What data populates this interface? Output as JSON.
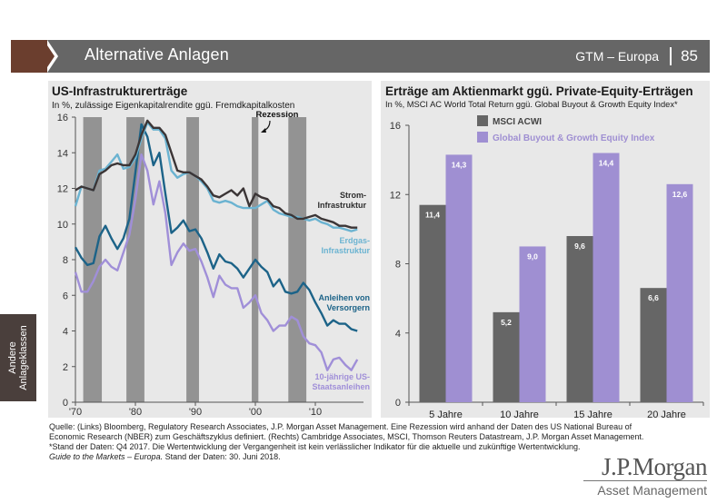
{
  "header": {
    "title": "Alternative Anlagen",
    "series_label": "GTM – Europa",
    "page_number": "85"
  },
  "side_tab": {
    "line1": "Andere",
    "line2": "Anlageklassen"
  },
  "colors": {
    "header_bg": "#666666",
    "header_accent": "#6b3e2e",
    "panel_bg": "#e8e8e8",
    "recession": "#939393",
    "strom": "#3b3536",
    "erdgas": "#6bb3d1",
    "anleihen": "#1c6388",
    "staats": "#a08fd8",
    "msci": "#666666",
    "buyout": "#9f8fd2"
  },
  "chart_data": [
    {
      "type": "line",
      "title": "US-Infrastrukturerträge",
      "subtitle": "In %, zulässige Eigenkapitalrendite ggü. Fremdkapitalkosten",
      "xlabel": "",
      "ylabel": "",
      "xlim": [
        1970,
        2018
      ],
      "ylim": [
        0,
        16
      ],
      "yticks": [
        0,
        2,
        4,
        6,
        8,
        10,
        12,
        14,
        16
      ],
      "xticks": [
        {
          "value": 1970,
          "label": "'70"
        },
        {
          "value": 1980,
          "label": "'80"
        },
        {
          "value": 1990,
          "label": "'90"
        },
        {
          "value": 2000,
          "label": "'00"
        },
        {
          "value": 2010,
          "label": "'10"
        }
      ],
      "annotation": "Rezession",
      "recessions": [
        [
          1971.3,
          1974.4
        ],
        [
          1978.5,
          1981.5
        ],
        [
          1988.5,
          1990.6
        ],
        [
          1999.4,
          2000.5
        ],
        [
          2005.5,
          2008.5
        ]
      ],
      "series": [
        {
          "name": "Strom-Infrastruktur",
          "label_lines": [
            "Strom-",
            "Infrastruktur"
          ],
          "color_key": "strom",
          "x": [
            1970,
            1971,
            1972,
            1973,
            1974,
            1975,
            1976,
            1977,
            1978,
            1979,
            1980,
            1981,
            1982,
            1983,
            1984,
            1985,
            1986,
            1987,
            1988,
            1989,
            1990,
            1991,
            1992,
            1993,
            1994,
            1995,
            1996,
            1997,
            1998,
            1999,
            2000,
            2001,
            2002,
            2003,
            2004,
            2005,
            2006,
            2007,
            2008,
            2009,
            2010,
            2011,
            2012,
            2013,
            2014,
            2015,
            2016,
            2017
          ],
          "values": [
            11.9,
            12.1,
            12.0,
            11.9,
            12.8,
            13.0,
            13.3,
            13.4,
            13.3,
            13.3,
            13.9,
            15.0,
            15.8,
            15.4,
            15.4,
            15.0,
            14.0,
            13.0,
            12.9,
            12.9,
            12.7,
            12.5,
            12.1,
            11.6,
            11.5,
            11.7,
            11.9,
            11.6,
            12.0,
            11.0,
            11.7,
            11.5,
            11.4,
            11.0,
            10.9,
            10.6,
            10.5,
            10.3,
            10.3,
            10.4,
            10.5,
            10.3,
            10.2,
            10.1,
            9.9,
            9.9,
            9.8,
            9.8
          ]
        },
        {
          "name": "Erdgas-Infrastruktur",
          "label_lines": [
            "Erdgas-",
            "Infrastruktur"
          ],
          "color_key": "erdgas",
          "x": [
            1970,
            1971,
            1972,
            1973,
            1974,
            1975,
            1976,
            1977,
            1978,
            1979,
            1980,
            1981,
            1982,
            1983,
            1984,
            1985,
            1986,
            1987,
            1988,
            1989,
            1990,
            1991,
            1992,
            1993,
            1994,
            1995,
            1996,
            1997,
            1998,
            1999,
            2000,
            2001,
            2002,
            2003,
            2004,
            2005,
            2006,
            2007,
            2008,
            2009,
            2010,
            2011,
            2012,
            2013,
            2014,
            2015,
            2016,
            2017
          ],
          "values": [
            11.0,
            12.1,
            12.0,
            11.9,
            13.0,
            13.1,
            13.5,
            13.9,
            13.1,
            13.2,
            13.7,
            14.8,
            15.7,
            15.3,
            15.3,
            14.8,
            13.0,
            12.6,
            12.8,
            12.9,
            12.7,
            12.4,
            12.0,
            11.3,
            11.2,
            11.3,
            11.2,
            11.0,
            10.9,
            10.9,
            10.9,
            11.1,
            11.3,
            10.8,
            10.6,
            10.5,
            10.4,
            10.4,
            10.3,
            10.2,
            10.3,
            10.1,
            10.0,
            9.8,
            9.8,
            9.7,
            9.6,
            9.7
          ]
        },
        {
          "name": "Anleihen von Versorgern",
          "label_lines": [
            "Anleihen von",
            "Versorgern"
          ],
          "color_key": "anleihen",
          "x": [
            1970,
            1971,
            1972,
            1973,
            1974,
            1975,
            1976,
            1977,
            1978,
            1979,
            1980,
            1981,
            1982,
            1983,
            1984,
            1985,
            1986,
            1987,
            1988,
            1989,
            1990,
            1991,
            1992,
            1993,
            1994,
            1995,
            1996,
            1997,
            1998,
            1999,
            2000,
            2001,
            2002,
            2003,
            2004,
            2005,
            2006,
            2007,
            2008,
            2009,
            2010,
            2011,
            2012,
            2013,
            2014,
            2015,
            2016,
            2017
          ],
          "values": [
            8.7,
            8.1,
            7.7,
            7.8,
            9.3,
            9.9,
            9.2,
            8.6,
            9.2,
            10.3,
            12.9,
            15.6,
            14.9,
            13.3,
            14.0,
            11.7,
            9.5,
            9.8,
            10.2,
            9.6,
            9.7,
            9.2,
            8.4,
            7.5,
            8.3,
            7.9,
            7.8,
            7.5,
            7.0,
            7.5,
            8.0,
            7.6,
            7.3,
            6.5,
            6.9,
            6.2,
            6.1,
            6.2,
            6.7,
            6.3,
            5.6,
            5.0,
            4.3,
            4.6,
            4.4,
            4.4,
            4.1,
            4.0
          ]
        },
        {
          "name": "10-jährige US-Staatsanleihen",
          "label_lines": [
            "10-jährige US-",
            "Staatsanleihen"
          ],
          "color_key": "staats",
          "x": [
            1970,
            1971,
            1972,
            1973,
            1974,
            1975,
            1976,
            1977,
            1978,
            1979,
            1980,
            1981,
            1982,
            1983,
            1984,
            1985,
            1986,
            1987,
            1988,
            1989,
            1990,
            1991,
            1992,
            1993,
            1994,
            1995,
            1996,
            1997,
            1998,
            1999,
            2000,
            2001,
            2002,
            2003,
            2004,
            2005,
            2006,
            2007,
            2008,
            2009,
            2010,
            2011,
            2012,
            2013,
            2014,
            2015,
            2016,
            2017
          ],
          "values": [
            7.3,
            6.2,
            6.2,
            6.8,
            7.6,
            8.0,
            7.6,
            7.4,
            8.4,
            9.4,
            11.4,
            13.9,
            13.0,
            11.1,
            12.4,
            10.6,
            7.7,
            8.4,
            8.9,
            8.5,
            8.6,
            7.9,
            7.0,
            5.9,
            7.1,
            6.6,
            6.4,
            6.4,
            5.3,
            5.6,
            6.0,
            5.0,
            4.6,
            4.0,
            4.3,
            4.3,
            4.8,
            4.6,
            3.7,
            3.3,
            3.2,
            2.8,
            1.8,
            2.4,
            2.5,
            2.1,
            1.8,
            2.4
          ]
        }
      ]
    },
    {
      "type": "bar",
      "title": "Erträge am Aktienmarkt ggü. Private-Equity-Erträgen",
      "subtitle": "In %, MSCI AC World Total Return ggü. Global Buyout & Growth Equity Index*",
      "xlabel": "",
      "ylabel": "",
      "ylim": [
        0,
        16
      ],
      "yticks": [
        0,
        4,
        8,
        12,
        16
      ],
      "categories": [
        "5 Jahre",
        "10 Jahre",
        "15 Jahre",
        "20 Jahre"
      ],
      "legend_position": "top-left",
      "series": [
        {
          "name": "MSCI ACWI",
          "color_key": "msci",
          "values": [
            11.4,
            5.2,
            9.6,
            6.6
          ],
          "labels": [
            "11,4",
            "5,2",
            "9,6",
            "6,6"
          ]
        },
        {
          "name": "Global Buyout & Growth Equity Index",
          "color_key": "buyout",
          "values": [
            14.3,
            9.0,
            14.4,
            12.6
          ],
          "labels": [
            "14,3",
            "9,0",
            "14,4",
            "12,6"
          ]
        }
      ]
    }
  ],
  "footer": {
    "line1": "Quelle: (Links) Bloomberg, Regulatory Research Associates, J.P. Morgan Asset Management. Eine Rezession wird anhand der Daten des US National Bureau of",
    "line2": "Economic Research (NBER) zum Geschäftszyklus definiert. (Rechts) Cambridge Associates, MSCI, Thomson Reuters Datastream, J.P. Morgan Asset Management.",
    "line3": "*Stand der Daten: Q4 2017. Die Wertentwicklung der Vergangenheit ist kein verlässlicher Indikator für die aktuelle und zukünftige Wertentwicklung.",
    "line4_italic": "Guide to the Markets – Europa.",
    "line4_rest": " Stand der Daten: 30. Juni 2018."
  },
  "logo": {
    "name": "J.P.Morgan",
    "sub": "Asset Management"
  }
}
